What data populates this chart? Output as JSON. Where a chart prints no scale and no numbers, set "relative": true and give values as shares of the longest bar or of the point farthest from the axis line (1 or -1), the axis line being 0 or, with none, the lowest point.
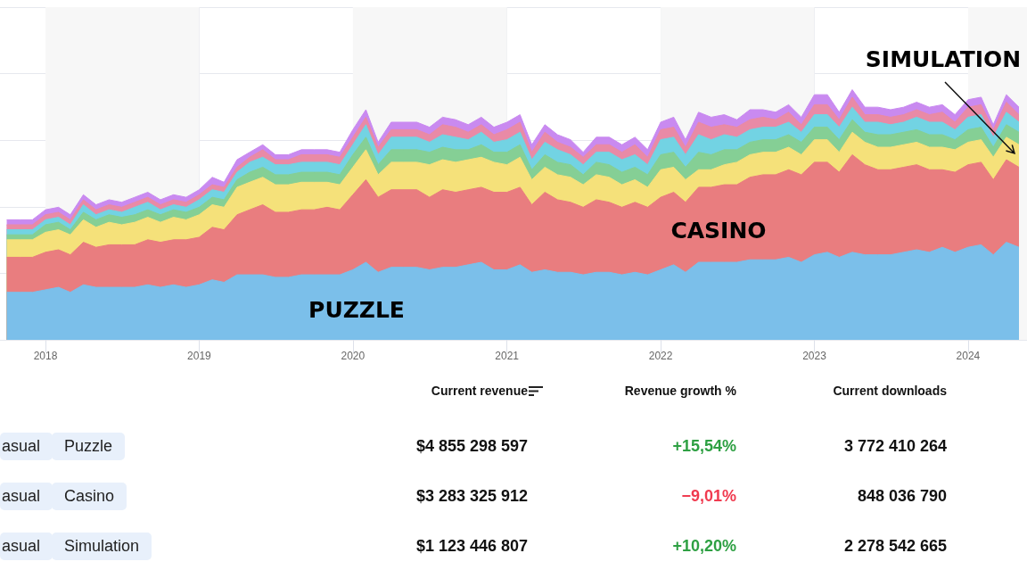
{
  "chart_data": [
    {
      "type": "area",
      "stacked": true,
      "relative": true,
      "grid": true,
      "x": [
        "2017-10",
        "2017-11",
        "2017-12",
        "2018-01",
        "2018-02",
        "2018-03",
        "2018-04",
        "2018-05",
        "2018-06",
        "2018-07",
        "2018-08",
        "2018-09",
        "2018-10",
        "2018-11",
        "2018-12",
        "2019-01",
        "2019-02",
        "2019-03",
        "2019-04",
        "2019-05",
        "2019-06",
        "2019-07",
        "2019-08",
        "2019-09",
        "2019-10",
        "2019-11",
        "2019-12",
        "2020-01",
        "2020-02",
        "2020-03",
        "2020-04",
        "2020-05",
        "2020-06",
        "2020-07",
        "2020-08",
        "2020-09",
        "2020-10",
        "2020-11",
        "2020-12",
        "2021-01",
        "2021-02",
        "2021-03",
        "2021-04",
        "2021-05",
        "2021-06",
        "2021-07",
        "2021-08",
        "2021-09",
        "2021-10",
        "2021-11",
        "2021-12",
        "2022-01",
        "2022-02",
        "2022-03",
        "2022-04",
        "2022-05",
        "2022-06",
        "2022-07",
        "2022-08",
        "2022-09",
        "2022-10",
        "2022-11",
        "2022-12",
        "2023-01",
        "2023-02",
        "2023-03",
        "2023-04",
        "2023-05",
        "2023-06",
        "2023-07",
        "2023-08",
        "2023-09",
        "2023-10",
        "2023-11",
        "2023-12",
        "2024-01",
        "2024-02",
        "2024-03",
        "2024-04",
        "2024-05"
      ],
      "xlim": [
        "2017-09-15",
        "2024-05-20"
      ],
      "xticks": [
        "2018",
        "2019",
        "2020",
        "2021",
        "2022",
        "2023",
        "2024"
      ],
      "bands": [
        {
          "axis": "x",
          "from": "2018",
          "to": "2019",
          "color": "#f7f7f7"
        },
        {
          "axis": "x",
          "from": "2020",
          "to": "2021",
          "color": "#f7f7f7"
        },
        {
          "axis": "x",
          "from": "2022",
          "to": "2023",
          "color": "#f7f7f7"
        },
        {
          "axis": "x",
          "from": "2024",
          "to": "2024-05-20",
          "color": "#f7f7f7"
        }
      ],
      "series": [
        {
          "color": "#7bbfea",
          "values": [
            0.19,
            0.19,
            0.19,
            0.2,
            0.21,
            0.19,
            0.22,
            0.21,
            0.21,
            0.21,
            0.21,
            0.22,
            0.21,
            0.22,
            0.21,
            0.22,
            0.24,
            0.23,
            0.26,
            0.26,
            0.26,
            0.25,
            0.25,
            0.26,
            0.26,
            0.26,
            0.26,
            0.28,
            0.31,
            0.27,
            0.29,
            0.29,
            0.29,
            0.28,
            0.29,
            0.29,
            0.3,
            0.31,
            0.28,
            0.28,
            0.3,
            0.27,
            0.28,
            0.27,
            0.27,
            0.26,
            0.27,
            0.27,
            0.26,
            0.27,
            0.26,
            0.28,
            0.3,
            0.27,
            0.31,
            0.31,
            0.31,
            0.31,
            0.32,
            0.32,
            0.32,
            0.33,
            0.31,
            0.34,
            0.35,
            0.33,
            0.35,
            0.34,
            0.34,
            0.34,
            0.35,
            0.36,
            0.35,
            0.37,
            0.35,
            0.37,
            0.38,
            0.34,
            0.39,
            0.37
          ]
        },
        {
          "color": "#e97d7f",
          "values": [
            0.14,
            0.14,
            0.14,
            0.15,
            0.15,
            0.15,
            0.17,
            0.16,
            0.17,
            0.17,
            0.17,
            0.18,
            0.18,
            0.18,
            0.19,
            0.19,
            0.21,
            0.21,
            0.24,
            0.26,
            0.28,
            0.26,
            0.26,
            0.26,
            0.26,
            0.27,
            0.26,
            0.3,
            0.33,
            0.3,
            0.31,
            0.31,
            0.31,
            0.29,
            0.31,
            0.3,
            0.3,
            0.3,
            0.31,
            0.31,
            0.31,
            0.27,
            0.31,
            0.29,
            0.28,
            0.27,
            0.29,
            0.28,
            0.27,
            0.28,
            0.27,
            0.29,
            0.29,
            0.28,
            0.3,
            0.3,
            0.31,
            0.31,
            0.33,
            0.34,
            0.34,
            0.35,
            0.35,
            0.37,
            0.36,
            0.34,
            0.39,
            0.36,
            0.34,
            0.34,
            0.34,
            0.34,
            0.33,
            0.31,
            0.32,
            0.33,
            0.33,
            0.3,
            0.33,
            0.32
          ]
        },
        {
          "color": "#f5e17a",
          "values": [
            0.07,
            0.07,
            0.07,
            0.08,
            0.08,
            0.08,
            0.09,
            0.08,
            0.09,
            0.08,
            0.09,
            0.09,
            0.08,
            0.09,
            0.08,
            0.09,
            0.09,
            0.09,
            0.11,
            0.11,
            0.11,
            0.11,
            0.11,
            0.11,
            0.11,
            0.1,
            0.1,
            0.11,
            0.12,
            0.09,
            0.11,
            0.11,
            0.11,
            0.13,
            0.12,
            0.12,
            0.12,
            0.12,
            0.12,
            0.11,
            0.12,
            0.1,
            0.1,
            0.1,
            0.1,
            0.09,
            0.1,
            0.1,
            0.09,
            0.09,
            0.08,
            0.11,
            0.1,
            0.09,
            0.07,
            0.07,
            0.08,
            0.09,
            0.09,
            0.09,
            0.09,
            0.09,
            0.08,
            0.09,
            0.09,
            0.08,
            0.09,
            0.09,
            0.09,
            0.09,
            0.09,
            0.09,
            0.09,
            0.09,
            0.09,
            0.09,
            0.09,
            0.09,
            0.09,
            0.09
          ]
        },
        {
          "color": "#85cf95",
          "values": [
            0.02,
            0.02,
            0.02,
            0.03,
            0.03,
            0.02,
            0.03,
            0.03,
            0.03,
            0.03,
            0.03,
            0.03,
            0.03,
            0.03,
            0.03,
            0.03,
            0.03,
            0.03,
            0.03,
            0.04,
            0.04,
            0.04,
            0.04,
            0.04,
            0.04,
            0.04,
            0.04,
            0.05,
            0.05,
            0.04,
            0.05,
            0.05,
            0.05,
            0.05,
            0.05,
            0.05,
            0.04,
            0.05,
            0.04,
            0.05,
            0.05,
            0.04,
            0.05,
            0.05,
            0.05,
            0.04,
            0.05,
            0.05,
            0.05,
            0.05,
            0.05,
            0.06,
            0.06,
            0.05,
            0.07,
            0.06,
            0.06,
            0.05,
            0.05,
            0.05,
            0.05,
            0.05,
            0.05,
            0.05,
            0.05,
            0.05,
            0.05,
            0.04,
            0.05,
            0.05,
            0.05,
            0.05,
            0.05,
            0.05,
            0.04,
            0.05,
            0.05,
            0.04,
            0.05,
            0.05
          ]
        },
        {
          "color": "#72d3e3",
          "values": [
            0.02,
            0.02,
            0.02,
            0.02,
            0.02,
            0.02,
            0.03,
            0.02,
            0.02,
            0.02,
            0.03,
            0.03,
            0.02,
            0.02,
            0.02,
            0.03,
            0.03,
            0.03,
            0.03,
            0.04,
            0.04,
            0.04,
            0.04,
            0.04,
            0.04,
            0.04,
            0.04,
            0.04,
            0.05,
            0.04,
            0.05,
            0.05,
            0.05,
            0.04,
            0.05,
            0.05,
            0.04,
            0.05,
            0.04,
            0.05,
            0.05,
            0.04,
            0.05,
            0.05,
            0.04,
            0.04,
            0.04,
            0.05,
            0.05,
            0.05,
            0.04,
            0.06,
            0.06,
            0.05,
            0.07,
            0.06,
            0.06,
            0.05,
            0.05,
            0.05,
            0.05,
            0.05,
            0.04,
            0.05,
            0.05,
            0.05,
            0.05,
            0.04,
            0.05,
            0.04,
            0.04,
            0.05,
            0.05,
            0.05,
            0.04,
            0.05,
            0.05,
            0.04,
            0.05,
            0.04
          ]
        },
        {
          "color": "#e98aa6",
          "values": [
            0.02,
            0.02,
            0.02,
            0.02,
            0.02,
            0.02,
            0.02,
            0.02,
            0.02,
            0.02,
            0.02,
            0.02,
            0.02,
            0.02,
            0.02,
            0.02,
            0.02,
            0.02,
            0.02,
            0.02,
            0.03,
            0.02,
            0.02,
            0.03,
            0.03,
            0.03,
            0.03,
            0.03,
            0.03,
            0.03,
            0.03,
            0.03,
            0.03,
            0.03,
            0.04,
            0.04,
            0.03,
            0.03,
            0.03,
            0.04,
            0.04,
            0.03,
            0.04,
            0.03,
            0.03,
            0.03,
            0.03,
            0.03,
            0.03,
            0.04,
            0.03,
            0.04,
            0.04,
            0.03,
            0.05,
            0.05,
            0.04,
            0.04,
            0.04,
            0.04,
            0.03,
            0.04,
            0.03,
            0.04,
            0.04,
            0.03,
            0.04,
            0.03,
            0.03,
            0.03,
            0.03,
            0.03,
            0.03,
            0.04,
            0.03,
            0.04,
            0.04,
            0.03,
            0.04,
            0.03
          ]
        },
        {
          "color": "#c98af0",
          "values": [
            0.02,
            0.02,
            0.02,
            0.02,
            0.02,
            0.02,
            0.02,
            0.02,
            0.02,
            0.02,
            0.02,
            0.02,
            0.02,
            0.02,
            0.02,
            0.02,
            0.03,
            0.02,
            0.03,
            0.02,
            0.02,
            0.02,
            0.02,
            0.02,
            0.02,
            0.02,
            0.02,
            0.03,
            0.03,
            0.02,
            0.03,
            0.03,
            0.03,
            0.03,
            0.03,
            0.03,
            0.03,
            0.03,
            0.03,
            0.03,
            0.03,
            0.03,
            0.03,
            0.03,
            0.03,
            0.02,
            0.03,
            0.03,
            0.03,
            0.03,
            0.03,
            0.03,
            0.04,
            0.03,
            0.04,
            0.04,
            0.04,
            0.03,
            0.04,
            0.03,
            0.03,
            0.03,
            0.03,
            0.04,
            0.04,
            0.03,
            0.03,
            0.03,
            0.03,
            0.03,
            0.03,
            0.03,
            0.03,
            0.03,
            0.03,
            0.03,
            0.03,
            0.02,
            0.03,
            0.03
          ]
        }
      ],
      "annotations": [
        "PUZZLE",
        "CASINO",
        "SIMULATION"
      ]
    },
    {
      "type": "other",
      "categories": [
        null,
        null,
        "Current revenue",
        "Revenue growth %",
        "Current downloads"
      ],
      "cell_labels": [
        [
          "asual",
          "Puzzle",
          "$4 855 298 597",
          "+15,54%",
          "3 772 410 264"
        ],
        [
          "asual",
          "Casino",
          "$3 283 325 912",
          "−9,01%",
          "848 036 790"
        ],
        [
          "asual",
          "Simulation",
          "$1 123 446 807",
          "+10,20%",
          "2 278 542 665"
        ]
      ],
      "colors": [
        "#2ea043",
        "#f03a4f",
        "#2ea043"
      ]
    }
  ]
}
